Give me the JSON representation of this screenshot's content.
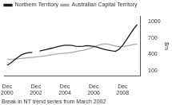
{
  "chart_data": {
    "type": "line",
    "y_label": "$m",
    "annotations": [
      "Break in NT trend series from March 2002"
    ],
    "x": [
      0.0,
      0.25,
      0.5,
      0.75,
      1.0,
      1.25,
      1.5,
      1.75,
      2.0,
      2.25,
      2.5,
      2.75,
      3.0,
      3.25,
      3.5,
      3.75,
      4.0,
      4.25,
      4.5,
      4.75,
      5.0,
      5.25,
      5.5,
      5.75,
      6.0,
      6.25,
      6.5,
      6.75,
      7.0,
      7.25,
      7.5,
      7.75,
      8.0,
      8.25,
      8.5,
      8.75,
      9.0
    ],
    "series": [
      {
        "name": "Northern Territory",
        "color": "#1a1a1a",
        "values": [
          200,
          240,
          295,
          345,
          390,
          415,
          430,
          435,
          null,
          460,
          475,
          490,
          505,
          520,
          540,
          555,
          565,
          565,
          560,
          548,
          542,
          548,
          558,
          553,
          542,
          528,
          508,
          488,
          475,
          462,
          452,
          490,
          565,
          660,
          760,
          860,
          940
        ]
      },
      {
        "name": "Australian Capital Territory",
        "color": "#aaaaaa",
        "values": [
          305,
          308,
          312,
          318,
          325,
          332,
          338,
          344,
          350,
          357,
          366,
          376,
          388,
          398,
          408,
          415,
          420,
          425,
          435,
          450,
          462,
          472,
          488,
          508,
          535,
          558,
          578,
          590,
          582,
          568,
          552,
          542,
          540,
          550,
          565,
          578,
          588
        ]
      }
    ],
    "xlim": [
      -0.2,
      9.2
    ],
    "xticks": [
      {
        "value": 0,
        "label": "Dec\n2000"
      },
      {
        "value": 2,
        "label": "Dec\n2002"
      },
      {
        "value": 4,
        "label": "Dec\n2004"
      },
      {
        "value": 6,
        "label": "Dec\n2006"
      },
      {
        "value": 8,
        "label": "Dec\n2008"
      }
    ],
    "ylim": [
      0,
      1100
    ],
    "yticks": [
      100,
      400,
      700,
      1000
    ],
    "grid": false,
    "legend": "top"
  }
}
